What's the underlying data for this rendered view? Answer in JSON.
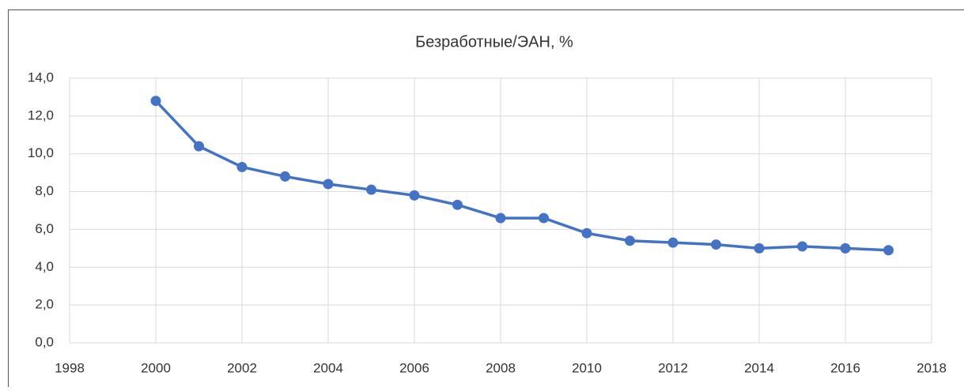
{
  "chart_data": {
    "type": "line",
    "title": "Безработные/ЭАН, %",
    "x": [
      2000,
      2001,
      2002,
      2003,
      2004,
      2005,
      2006,
      2007,
      2008,
      2009,
      2010,
      2011,
      2012,
      2013,
      2014,
      2015,
      2016,
      2017
    ],
    "values": [
      12.8,
      10.4,
      9.3,
      8.8,
      8.4,
      8.1,
      7.8,
      7.3,
      6.6,
      6.6,
      5.8,
      5.4,
      5.3,
      5.2,
      5.0,
      5.1,
      5.0,
      4.9
    ],
    "color": "#4472c4",
    "xlim": [
      1998,
      2018
    ],
    "xticks": [
      1998,
      2000,
      2002,
      2004,
      2006,
      2008,
      2010,
      2012,
      2014,
      2016,
      2018
    ],
    "ylim": [
      0,
      14
    ],
    "yticks": [
      {
        "value": 0,
        "label": "0,0"
      },
      {
        "value": 2,
        "label": "2,0"
      },
      {
        "value": 4,
        "label": "4,0"
      },
      {
        "value": 6,
        "label": "6,0"
      },
      {
        "value": 8,
        "label": "8,0"
      },
      {
        "value": 10,
        "label": "10,0"
      },
      {
        "value": 12,
        "label": "12,0"
      },
      {
        "value": 14,
        "label": "14,0"
      }
    ],
    "grid": true
  }
}
